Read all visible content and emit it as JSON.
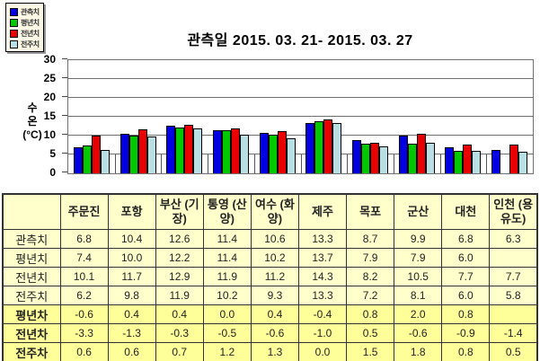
{
  "title": "관측일 2015. 03. 21-  2015. 03. 27",
  "accent_colors": {
    "observed_blue": "#0000e0",
    "normal_green": "#00c800",
    "prev_year_red": "#e80000",
    "prev_week_cyan": "#b8e0e4",
    "table_bg": "#ffffcc",
    "table_diff_bg": "#ffff99",
    "legend_bg": "#fbf7e4"
  },
  "chart_data": {
    "type": "bar",
    "title": "관측일 2015. 03. 21-  2015. 03. 27",
    "ylabel": "수온",
    "ylabel_unit": "(°C)",
    "ylim": [
      0,
      30
    ],
    "yticks": [
      0,
      5,
      10,
      15,
      20,
      25,
      30
    ],
    "grid": true,
    "legend_position": "top-left",
    "categories": [
      "주문진",
      "포항",
      "부산(기장)",
      "통영(산양)",
      "여수(화양)",
      "제주",
      "목포",
      "군산",
      "대천",
      "인천(용유도)"
    ],
    "series": [
      {
        "name": "관측치",
        "color": "#0000e0",
        "values": [
          6.8,
          10.4,
          12.6,
          11.4,
          10.6,
          13.3,
          8.7,
          9.9,
          6.8,
          6.3
        ]
      },
      {
        "name": "평년치",
        "color": "#00c800",
        "values": [
          7.4,
          10.0,
          12.2,
          11.4,
          10.2,
          13.7,
          7.9,
          7.9,
          6.0,
          null
        ]
      },
      {
        "name": "전년치",
        "color": "#e80000",
        "values": [
          10.1,
          11.7,
          12.9,
          11.9,
          11.2,
          14.3,
          8.2,
          10.5,
          7.7,
          7.7
        ]
      },
      {
        "name": "전주치",
        "color": "#b8e0e4",
        "values": [
          6.2,
          9.8,
          11.9,
          10.2,
          9.3,
          13.3,
          7.2,
          8.1,
          6.0,
          5.8
        ]
      }
    ]
  },
  "table": {
    "corner": "",
    "columns": [
      "주문진",
      "포항",
      "부산 (기장)",
      "통영 (산양)",
      "여수 (화양)",
      "제주",
      "목포",
      "군산",
      "대천",
      "인천 (용유도)"
    ],
    "rows": [
      {
        "label": "관측치",
        "highlight": false,
        "values": [
          "6.8",
          "10.4",
          "12.6",
          "11.4",
          "10.6",
          "13.3",
          "8.7",
          "9.9",
          "6.8",
          "6.3"
        ]
      },
      {
        "label": "평년치",
        "highlight": false,
        "values": [
          "7.4",
          "10.0",
          "12.2",
          "11.4",
          "10.2",
          "13.7",
          "7.9",
          "7.9",
          "6.0",
          ""
        ]
      },
      {
        "label": "전년치",
        "highlight": false,
        "values": [
          "10.1",
          "11.7",
          "12.9",
          "11.9",
          "11.2",
          "14.3",
          "8.2",
          "10.5",
          "7.7",
          "7.7"
        ]
      },
      {
        "label": "전주치",
        "highlight": false,
        "values": [
          "6.2",
          "9.8",
          "11.9",
          "10.2",
          "9.3",
          "13.3",
          "7.2",
          "8.1",
          "6.0",
          "5.8"
        ]
      },
      {
        "label": "평년차",
        "highlight": true,
        "values": [
          "-0.6",
          "0.4",
          "0.4",
          "0.0",
          "0.4",
          "-0.4",
          "0.8",
          "2.0",
          "0.8",
          ""
        ]
      },
      {
        "label": "전년차",
        "highlight": true,
        "values": [
          "-3.3",
          "-1.3",
          "-0.3",
          "-0.5",
          "-0.6",
          "-1.0",
          "0.5",
          "-0.6",
          "-0.9",
          "-1.4"
        ]
      },
      {
        "label": "전주차",
        "highlight": true,
        "values": [
          "0.6",
          "0.6",
          "0.7",
          "1.2",
          "1.3",
          "0.0",
          "1.5",
          "1.8",
          "0.8",
          "0.5"
        ]
      }
    ]
  }
}
